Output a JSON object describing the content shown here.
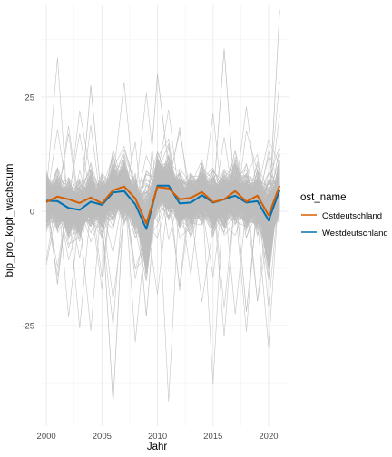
{
  "chart_data": {
    "type": "line",
    "xlabel": "Jahr",
    "ylabel": "bip_pro_kopf_wachstum",
    "x_ticks": [
      2000,
      2005,
      2010,
      2015,
      2020
    ],
    "y_ticks": [
      -25,
      0,
      25
    ],
    "xlim": [
      1999.5,
      2021.8
    ],
    "ylim": [
      -47,
      45
    ],
    "grid": true,
    "legend": {
      "title": "ost_name",
      "placement": "right"
    },
    "x": [
      2000,
      2001,
      2002,
      2003,
      2004,
      2005,
      2006,
      2007,
      2008,
      2009,
      2010,
      2011,
      2012,
      2013,
      2014,
      2015,
      2016,
      2017,
      2018,
      2019,
      2020,
      2021
    ],
    "series": [
      {
        "name": "Ostdeutschland",
        "color": "#d55e00",
        "values": [
          2.0,
          3.2,
          2.6,
          1.8,
          3.0,
          1.7,
          4.6,
          5.4,
          2.8,
          -2.7,
          5.3,
          5.0,
          2.6,
          2.9,
          4.2,
          2.0,
          2.6,
          4.4,
          2.1,
          3.4,
          -0.9,
          5.6
        ]
      },
      {
        "name": "Westdeutschland",
        "color": "#0072b2",
        "values": [
          2.3,
          2.2,
          0.7,
          0.3,
          2.1,
          1.4,
          4.1,
          4.4,
          1.5,
          -3.9,
          5.6,
          5.6,
          1.7,
          1.9,
          3.5,
          1.9,
          2.6,
          3.4,
          1.9,
          2.2,
          -2.0,
          4.6
        ]
      }
    ],
    "background_series": {
      "color": "#bebebe",
      "description_count": 400
    }
  }
}
